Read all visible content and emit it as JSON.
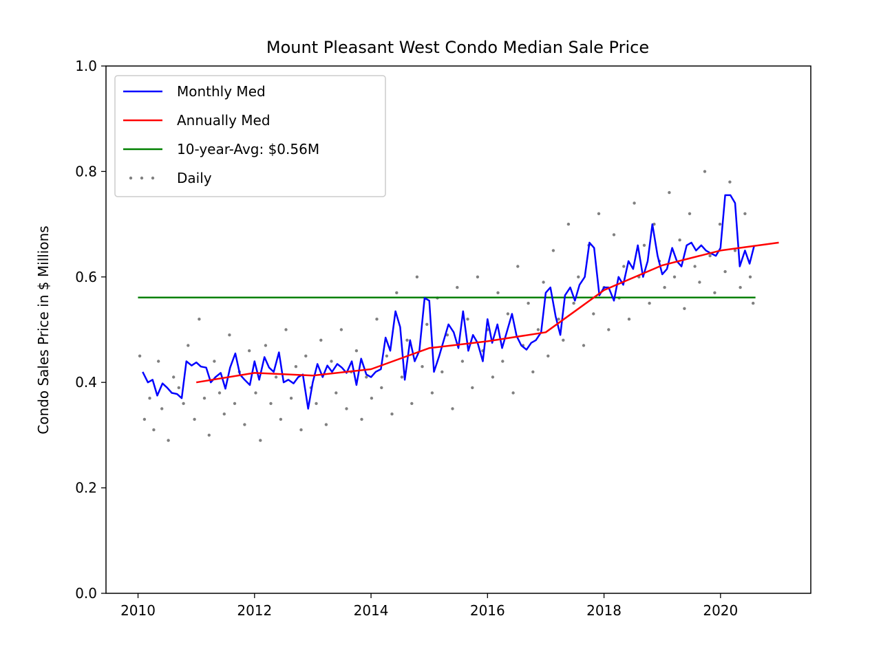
{
  "chart_data": {
    "type": "line",
    "title": "Mount Pleasant West Condo Median Sale Price",
    "xlabel": "",
    "ylabel": "Condo Sales Price in $ Millions",
    "xlim": [
      2009.45,
      2021.55
    ],
    "ylim": [
      0.0,
      1.0
    ],
    "x_ticks": [
      2010,
      2012,
      2014,
      2016,
      2018,
      2020
    ],
    "x_tick_labels": [
      "2010",
      "2012",
      "2014",
      "2016",
      "2018",
      "2020"
    ],
    "y_ticks": [
      0.0,
      0.2,
      0.4,
      0.6,
      0.8,
      1.0
    ],
    "y_tick_labels": [
      "0.0",
      "0.2",
      "0.4",
      "0.6",
      "0.8",
      "1.0"
    ],
    "grid": false,
    "legend_position": "top-left",
    "colors": {
      "monthly": "#0000ff",
      "annual": "#ff0000",
      "average": "#008000",
      "daily": "#808080"
    },
    "series": [
      {
        "name": "Monthly Med",
        "style": "line",
        "color": "#0000ff",
        "x": [
          2010.08,
          2010.17,
          2010.25,
          2010.33,
          2010.42,
          2010.5,
          2010.58,
          2010.67,
          2010.75,
          2010.83,
          2010.92,
          2011.0,
          2011.08,
          2011.17,
          2011.25,
          2011.33,
          2011.42,
          2011.5,
          2011.58,
          2011.67,
          2011.75,
          2011.83,
          2011.92,
          2012.0,
          2012.08,
          2012.17,
          2012.25,
          2012.33,
          2012.42,
          2012.5,
          2012.58,
          2012.67,
          2012.75,
          2012.83,
          2012.92,
          2013.0,
          2013.08,
          2013.17,
          2013.25,
          2013.33,
          2013.42,
          2013.5,
          2013.58,
          2013.67,
          2013.75,
          2013.83,
          2013.92,
          2014.0,
          2014.08,
          2014.17,
          2014.25,
          2014.33,
          2014.42,
          2014.5,
          2014.58,
          2014.67,
          2014.75,
          2014.83,
          2014.92,
          2015.0,
          2015.08,
          2015.17,
          2015.25,
          2015.33,
          2015.42,
          2015.5,
          2015.58,
          2015.67,
          2015.75,
          2015.83,
          2015.92,
          2016.0,
          2016.08,
          2016.17,
          2016.25,
          2016.33,
          2016.42,
          2016.5,
          2016.58,
          2016.67,
          2016.75,
          2016.83,
          2016.92,
          2017.0,
          2017.08,
          2017.17,
          2017.25,
          2017.33,
          2017.42,
          2017.5,
          2017.58,
          2017.67,
          2017.75,
          2017.83,
          2017.92,
          2018.0,
          2018.08,
          2018.17,
          2018.25,
          2018.33,
          2018.42,
          2018.5,
          2018.58,
          2018.67,
          2018.75,
          2018.83,
          2018.92,
          2019.0,
          2019.08,
          2019.17,
          2019.25,
          2019.33,
          2019.42,
          2019.5,
          2019.58,
          2019.67,
          2019.75,
          2019.83,
          2019.92,
          2020.0,
          2020.08,
          2020.17,
          2020.25,
          2020.33,
          2020.42,
          2020.5,
          2020.58
        ],
        "values": [
          0.42,
          0.4,
          0.405,
          0.375,
          0.398,
          0.39,
          0.38,
          0.378,
          0.37,
          0.44,
          0.432,
          0.438,
          0.43,
          0.428,
          0.4,
          0.41,
          0.418,
          0.388,
          0.428,
          0.455,
          0.415,
          0.405,
          0.395,
          0.44,
          0.405,
          0.448,
          0.428,
          0.42,
          0.457,
          0.4,
          0.405,
          0.398,
          0.41,
          0.415,
          0.35,
          0.4,
          0.435,
          0.41,
          0.432,
          0.42,
          0.435,
          0.428,
          0.418,
          0.44,
          0.395,
          0.445,
          0.415,
          0.41,
          0.42,
          0.425,
          0.485,
          0.46,
          0.535,
          0.505,
          0.405,
          0.48,
          0.44,
          0.46,
          0.56,
          0.555,
          0.42,
          0.45,
          0.48,
          0.51,
          0.495,
          0.465,
          0.535,
          0.46,
          0.49,
          0.475,
          0.44,
          0.52,
          0.475,
          0.51,
          0.465,
          0.495,
          0.53,
          0.488,
          0.47,
          0.462,
          0.475,
          0.48,
          0.495,
          0.57,
          0.58,
          0.525,
          0.49,
          0.565,
          0.58,
          0.555,
          0.585,
          0.6,
          0.665,
          0.655,
          0.565,
          0.58,
          0.58,
          0.555,
          0.6,
          0.585,
          0.63,
          0.615,
          0.66,
          0.6,
          0.63,
          0.7,
          0.64,
          0.605,
          0.615,
          0.655,
          0.63,
          0.62,
          0.66,
          0.665,
          0.65,
          0.66,
          0.65,
          0.645,
          0.64,
          0.655,
          0.755,
          0.755,
          0.74,
          0.62,
          0.65,
          0.625,
          0.66
        ]
      },
      {
        "name": "Annually Med",
        "style": "line",
        "color": "#ff0000",
        "x": [
          2011.0,
          2012.0,
          2013.0,
          2014.0,
          2015.0,
          2016.0,
          2017.0,
          2017.5,
          2018.0,
          2019.0,
          2020.0,
          2021.0
        ],
        "values": [
          0.4,
          0.418,
          0.413,
          0.425,
          0.465,
          0.478,
          0.495,
          0.535,
          0.575,
          0.622,
          0.65,
          0.665
        ]
      },
      {
        "name": "10-year-Avg: $0.56M",
        "style": "line",
        "color": "#008000",
        "x": [
          2010.0,
          2020.6
        ],
        "values": [
          0.561,
          0.561
        ]
      },
      {
        "name": "Daily",
        "style": "scatter",
        "color": "#808080",
        "x": [
          2010.03,
          2010.11,
          2010.2,
          2010.27,
          2010.35,
          2010.41,
          2010.52,
          2010.61,
          2010.7,
          2010.78,
          2010.86,
          2010.97,
          2011.05,
          2011.14,
          2011.22,
          2011.31,
          2011.4,
          2011.48,
          2011.57,
          2011.66,
          2011.74,
          2011.83,
          2011.91,
          2012.02,
          2012.1,
          2012.19,
          2012.28,
          2012.37,
          2012.45,
          2012.54,
          2012.63,
          2012.71,
          2012.8,
          2012.88,
          2012.97,
          2013.06,
          2013.14,
          2013.23,
          2013.32,
          2013.4,
          2013.49,
          2013.58,
          2013.66,
          2013.75,
          2013.84,
          2013.92,
          2014.01,
          2014.1,
          2014.18,
          2014.27,
          2014.36,
          2014.44,
          2014.53,
          2014.62,
          2014.7,
          2014.79,
          2014.88,
          2014.96,
          2015.05,
          2015.14,
          2015.22,
          2015.31,
          2015.4,
          2015.48,
          2015.57,
          2015.66,
          2015.74,
          2015.83,
          2015.92,
          2016.0,
          2016.09,
          2016.18,
          2016.26,
          2016.35,
          2016.44,
          2016.52,
          2016.61,
          2016.7,
          2016.78,
          2016.87,
          2016.96,
          2017.04,
          2017.13,
          2017.22,
          2017.3,
          2017.39,
          2017.48,
          2017.56,
          2017.65,
          2017.74,
          2017.82,
          2017.91,
          2018.0,
          2018.08,
          2018.17,
          2018.26,
          2018.34,
          2018.43,
          2018.52,
          2018.6,
          2018.69,
          2018.78,
          2018.86,
          2018.95,
          2019.04,
          2019.12,
          2019.21,
          2019.3,
          2019.38,
          2019.47,
          2019.56,
          2019.64,
          2019.73,
          2019.82,
          2019.9,
          2019.99,
          2020.08,
          2020.16,
          2020.25,
          2020.34,
          2020.42,
          2020.51,
          2020.56
        ],
        "values": [
          0.45,
          0.33,
          0.37,
          0.31,
          0.44,
          0.35,
          0.29,
          0.41,
          0.39,
          0.36,
          0.47,
          0.33,
          0.52,
          0.37,
          0.3,
          0.44,
          0.38,
          0.34,
          0.49,
          0.36,
          0.42,
          0.32,
          0.46,
          0.38,
          0.29,
          0.47,
          0.36,
          0.41,
          0.33,
          0.5,
          0.37,
          0.43,
          0.31,
          0.45,
          0.39,
          0.36,
          0.48,
          0.32,
          0.44,
          0.38,
          0.5,
          0.35,
          0.42,
          0.46,
          0.33,
          0.41,
          0.37,
          0.52,
          0.39,
          0.45,
          0.34,
          0.57,
          0.41,
          0.48,
          0.36,
          0.6,
          0.43,
          0.51,
          0.38,
          0.56,
          0.42,
          0.49,
          0.35,
          0.58,
          0.44,
          0.52,
          0.39,
          0.6,
          0.46,
          0.5,
          0.41,
          0.57,
          0.44,
          0.53,
          0.38,
          0.62,
          0.47,
          0.55,
          0.42,
          0.5,
          0.59,
          0.45,
          0.65,
          0.52,
          0.48,
          0.7,
          0.55,
          0.6,
          0.47,
          0.66,
          0.53,
          0.72,
          0.58,
          0.5,
          0.68,
          0.56,
          0.62,
          0.52,
          0.74,
          0.6,
          0.66,
          0.55,
          0.7,
          0.63,
          0.58,
          0.76,
          0.6,
          0.67,
          0.54,
          0.72,
          0.62,
          0.59,
          0.8,
          0.64,
          0.57,
          0.7,
          0.61,
          0.78,
          0.65,
          0.58,
          0.72,
          0.6,
          0.55
        ]
      }
    ]
  }
}
